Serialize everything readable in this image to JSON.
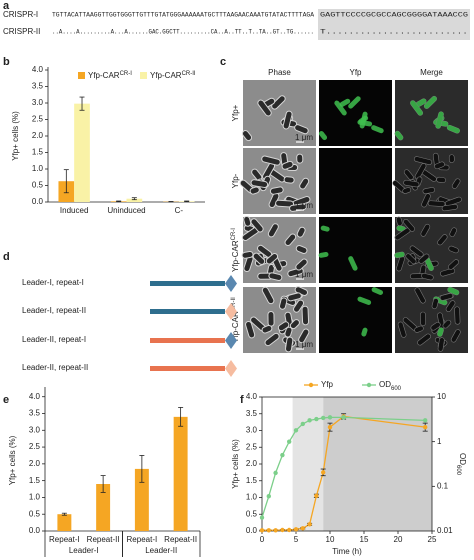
{
  "panel_a": {
    "label": "a",
    "rows": [
      {
        "name": "CRISPR-I",
        "sequence": "TGTTACATTAAGGTTGGTGGGTTGTTTGTATGGGAAAAAATGCTTTAAGAACAAATGTATACTTTTAGA",
        "highlighted": "GAGTTCCCCGCGCCAGCGGGGATAAACCG"
      },
      {
        "name": "CRISPR-II",
        "sequence": "..A....A.........A...A......GAC.GGCTT.........CA..A..TT..T..TA..GT..TG......",
        "highlighted": "T........................."
      }
    ]
  },
  "panel_c": {
    "label": "c",
    "columns": [
      "Phase",
      "Yfp",
      "Merge"
    ],
    "rows": [
      {
        "name": "Yfp+"
      },
      {
        "name": "Yfp-"
      },
      {
        "name": "Yfp-CAR",
        "superscript": "CR-I"
      },
      {
        "name": "Yfp-CAR",
        "superscript": "CR-II"
      }
    ],
    "scale_bar": "1 μm"
  },
  "panel_d": {
    "label": "d",
    "constructs": [
      "Leader-I, repeat-I",
      "Leader-I, repeat-II",
      "Leader-II, repeat-I",
      "Leader-II, repeat-II"
    ]
  },
  "chart_data": [
    {
      "type": "bar",
      "label": "b",
      "y_label": "Yfp+ cells (%)",
      "categories": [
        "Induced",
        "Uninduced",
        "C-"
      ],
      "series": [
        {
          "name": "Yfp-CAR",
          "superscript": "CR-I",
          "color": "#f5a623",
          "values": [
            0.63,
            0.02,
            0.01
          ],
          "errors": [
            0.35,
            0.01,
            0.005
          ]
        },
        {
          "name": "Yfp-CAR",
          "superscript": "CR-II",
          "color": "#f9f2a6",
          "values": [
            2.98,
            0.1,
            0.02
          ],
          "errors": [
            0.2,
            0.03,
            0.01
          ]
        }
      ],
      "ylim": [
        0,
        4
      ],
      "yticks": [
        {
          "value": 0,
          "label": "0.0"
        },
        0.5,
        {
          "value": 1,
          "label": "1.0"
        },
        1.5,
        {
          "value": 2,
          "label": "2.0"
        },
        2.5,
        {
          "value": 3,
          "label": "3.0"
        },
        3.5,
        {
          "value": 4,
          "label": "4.0"
        }
      ]
    },
    {
      "type": "bar",
      "label": "e",
      "y_label": "Yfp+ cells (%)",
      "categories": [
        "Repeat-I",
        "Repeat-II",
        "Repeat-I",
        "Repeat-II"
      ],
      "group_labels": [
        "Leader-I",
        "Leader-II"
      ],
      "color": "#f5a623",
      "values": [
        0.5,
        1.4,
        1.85,
        3.4
      ],
      "errors": [
        0.03,
        0.25,
        0.4,
        0.28
      ],
      "ylim": [
        0,
        4.2
      ],
      "yticks": [
        {
          "value": 0,
          "label": "0.0"
        },
        0.5,
        {
          "value": 1,
          "label": "1.0"
        },
        1.5,
        {
          "value": 2,
          "label": "2.0"
        },
        2.5,
        {
          "value": 3,
          "label": "3.0"
        },
        3.5,
        {
          "value": 4,
          "label": "4.0"
        }
      ]
    },
    {
      "type": "line",
      "label": "f",
      "x_label": "Time (h)",
      "y_label": "Yfp+ cells (%)",
      "y2_label": "OD",
      "y2_label_subscript": "600",
      "x": [
        0,
        1,
        2,
        3,
        4,
        5,
        6,
        7,
        8,
        9,
        10,
        12,
        24
      ],
      "series": [
        {
          "name": "Yfp",
          "color": "#f5a623",
          "values": [
            0.02,
            0.02,
            0.02,
            0.03,
            0.03,
            0.05,
            0.08,
            0.2,
            1.05,
            1.75,
            3.1,
            3.42,
            3.1
          ],
          "errors": [
            0.01,
            0.01,
            0.01,
            0.01,
            0.01,
            0.01,
            0.02,
            0.03,
            0.05,
            0.1,
            0.12,
            0.08,
            0.12
          ]
        },
        {
          "name": "OD",
          "subscript": "600",
          "color": "#7ccf8a",
          "axis": "y2",
          "values": [
            0.02,
            0.06,
            0.2,
            0.5,
            1.0,
            1.8,
            2.5,
            3.0,
            3.2,
            3.4,
            3.5,
            3.5,
            3.0
          ]
        }
      ],
      "shaded_regions": [
        {
          "x": [
            4.5,
            9
          ],
          "color": "#e4e4e4"
        },
        {
          "x": [
            9,
            25
          ],
          "color": "#cdcdcd"
        }
      ],
      "xlim": [
        0,
        25
      ],
      "xticks": [
        0,
        5,
        10,
        15,
        20,
        25
      ],
      "ylim": [
        0,
        4
      ],
      "yticks": [
        {
          "value": 0,
          "label": "0.0"
        },
        0.5,
        {
          "value": 1,
          "label": "1.0"
        },
        1.5,
        {
          "value": 2,
          "label": "2.0"
        },
        2.5,
        {
          "value": 3,
          "label": "3.0"
        },
        3.5,
        {
          "value": 4,
          "label": "4.0"
        }
      ],
      "y2lim": [
        0.01,
        10
      ],
      "y2ticks": [
        0.01,
        0.1,
        1,
        10
      ],
      "y2_log": true
    }
  ]
}
